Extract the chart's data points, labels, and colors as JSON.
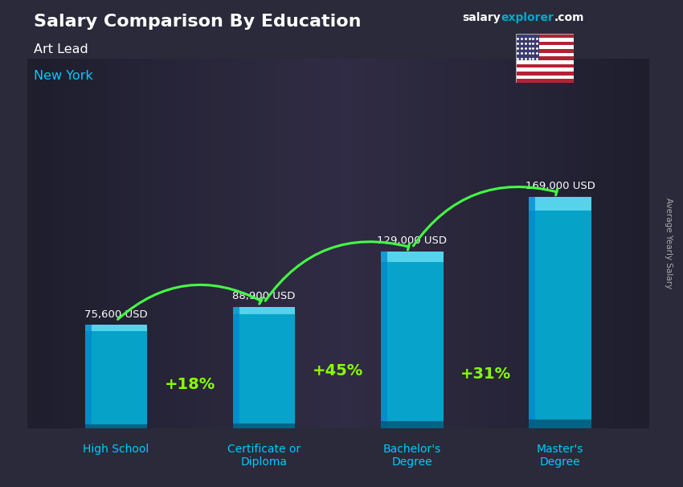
{
  "title": "Salary Comparison By Education",
  "subtitle_role": "Art Lead",
  "subtitle_location": "New York",
  "ylabel": "Average Yearly Salary",
  "categories": [
    "High School",
    "Certificate or\nDiploma",
    "Bachelor's\nDegree",
    "Master's\nDegree"
  ],
  "values": [
    75600,
    88900,
    129000,
    169000
  ],
  "value_labels": [
    "75,600 USD",
    "88,900 USD",
    "129,000 USD",
    "169,000 USD"
  ],
  "pct_labels": [
    "+18%",
    "+45%",
    "+31%"
  ],
  "bar_face_color": "#00bfea",
  "bar_highlight_color": "#80eeff",
  "bar_left_color": "#0088cc",
  "bar_bottom_color": "#005577",
  "bar_alpha": 0.82,
  "bg_color": "#2a2a3a",
  "title_color": "#ffffff",
  "subtitle_role_color": "#ffffff",
  "subtitle_loc_color": "#00ccff",
  "value_label_color": "#ffffff",
  "pct_color": "#88ff00",
  "arrow_color": "#44ff44",
  "xlabel_color": "#00ccff",
  "brand_salary_color": "#ffffff",
  "brand_explorer_color": "#00aacc",
  "brand_com_color": "#ffffff",
  "ylabel_color": "#aaaaaa",
  "max_val": 200000,
  "bar_width": 0.42,
  "fig_width": 8.5,
  "fig_height": 6.06,
  "dpi": 100
}
